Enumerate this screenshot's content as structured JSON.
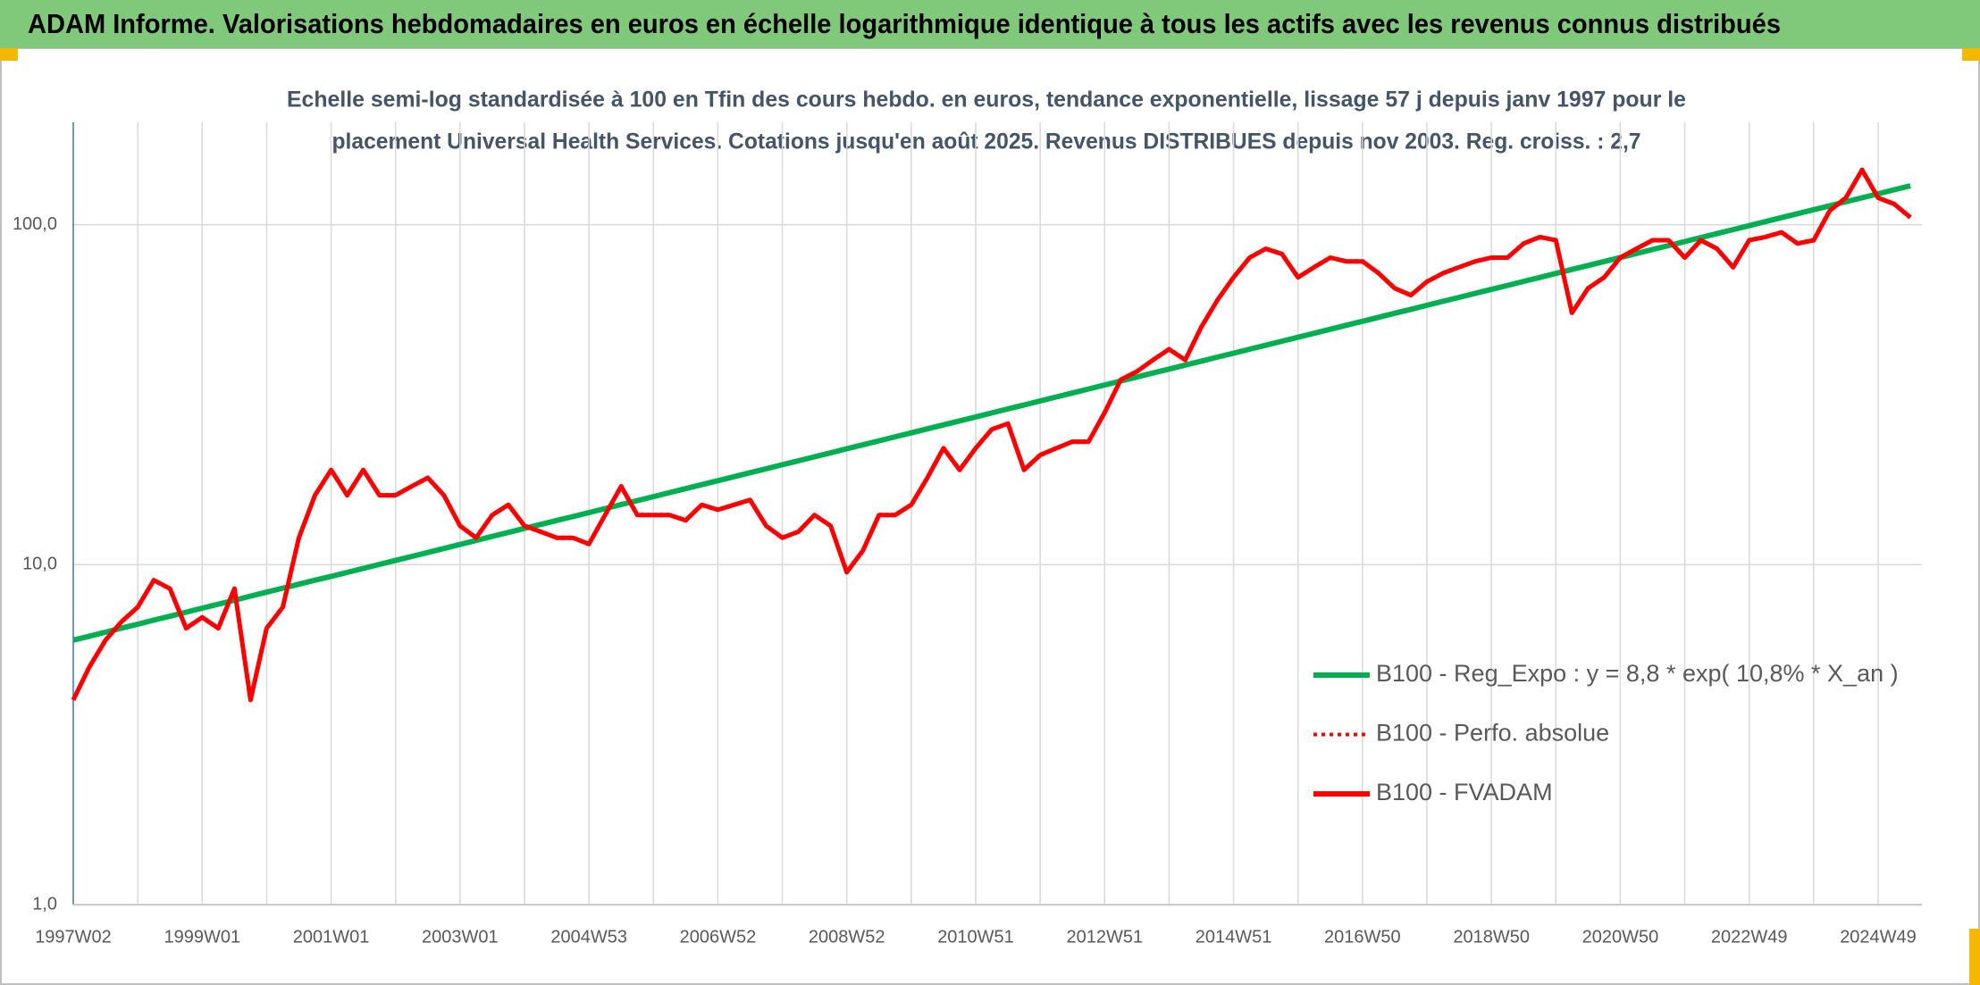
{
  "header": {
    "title": "ADAM Informe. Valorisations hebdomadaires en euros en échelle logarithmique identique à tous les actifs avec les revenus connus distribués"
  },
  "chart_data": {
    "type": "line",
    "subtitle": [
      "Echelle semi-log standardisée à 100 en Tfin des cours hebdo. en euros, tendance exponentielle, lissage 57 j depuis janv 1997 pour le",
      "placement Universal Health Services. Cotations jusqu'en août 2025. Revenus DISTRIBUES depuis nov 2003. Reg. croiss. : 2,7"
    ],
    "x": [
      "1997W02",
      null,
      null,
      null,
      null,
      null,
      null,
      null,
      "1999W01",
      null,
      null,
      null,
      null,
      null,
      null,
      null,
      "2001W01",
      null,
      null,
      null,
      null,
      null,
      null,
      null,
      "2003W01",
      null,
      null,
      null,
      null,
      null,
      null,
      null,
      "2004W53",
      null,
      null,
      null,
      null,
      null,
      null,
      null,
      "2006W52",
      null,
      null,
      null,
      null,
      null,
      null,
      null,
      "2008W52",
      null,
      null,
      null,
      null,
      null,
      null,
      null,
      "2010W51",
      null,
      null,
      null,
      null,
      null,
      null,
      null,
      "2012W51",
      null,
      null,
      null,
      null,
      null,
      null,
      null,
      "2014W51",
      null,
      null,
      null,
      null,
      null,
      null,
      null,
      "2016W50",
      null,
      null,
      null,
      null,
      null,
      null,
      null,
      "2018W50",
      null,
      null,
      null,
      null,
      null,
      null,
      null,
      "2020W50",
      null,
      null,
      null,
      null,
      null,
      null,
      null,
      "2022W49",
      null,
      null,
      null,
      null,
      null,
      null,
      null,
      "2024W49",
      null,
      null
    ],
    "ylim": [
      1,
      200
    ],
    "log_scale": true,
    "grid": true,
    "yticks": [
      {
        "value": 1,
        "label": "1,0"
      },
      {
        "value": 10,
        "label": "10,0"
      },
      {
        "value": 100,
        "label": "100,0"
      }
    ],
    "series": [
      {
        "name": "B100 - Reg_Expo : y = 8,8 * exp( 10,8% *  X_an )",
        "color": "#00b050",
        "style": "solid",
        "values": [
          6.0,
          6.16,
          6.33,
          6.51,
          6.68,
          6.87,
          7.05,
          7.25,
          7.45,
          7.65,
          7.86,
          8.08,
          8.3,
          8.53,
          8.76,
          9.0,
          9.24,
          9.49,
          9.75,
          10.02,
          10.29,
          10.57,
          10.86,
          11.16,
          11.47,
          11.78,
          12.11,
          12.44,
          12.78,
          13.13,
          13.49,
          13.85,
          14.23,
          14.62,
          15.02,
          15.43,
          15.85,
          16.29,
          16.73,
          17.19,
          17.66,
          18.14,
          18.64,
          19.15,
          19.67,
          20.21,
          20.76,
          21.33,
          21.92,
          22.52,
          23.14,
          23.77,
          24.42,
          25.09,
          25.77,
          26.48,
          27.2,
          27.94,
          28.71,
          29.49,
          30.3,
          31.13,
          31.98,
          32.86,
          33.76,
          34.68,
          35.63,
          36.61,
          37.61,
          38.64,
          39.69,
          40.78,
          41.89,
          43.04,
          44.21,
          45.42,
          46.66,
          47.94,
          49.25,
          50.6,
          51.99,
          53.41,
          54.87,
          56.37,
          57.92,
          59.5,
          61.13,
          62.8,
          64.52,
          66.28,
          68.1,
          69.96,
          71.87,
          73.84,
          75.86,
          77.93,
          80.07,
          82.26,
          84.51,
          86.82,
          89.2,
          91.64,
          94.14,
          96.72,
          99.36,
          102.1,
          104.9,
          107.7,
          110.7,
          113.7,
          116.8,
          120.0,
          123.3,
          126.7,
          130.1
        ]
      },
      {
        "name": "B100 - Perfo. absolue",
        "color": "#ff0000",
        "style": "dotted",
        "values": [
          4.0,
          5.0,
          6.0,
          6.8,
          7.5,
          9.0,
          8.5,
          6.5,
          7.0,
          6.5,
          8.5,
          4.0,
          6.5,
          7.5,
          12,
          16,
          19,
          16,
          19,
          16,
          16,
          17,
          18,
          16,
          13,
          12,
          14,
          15,
          13,
          12.5,
          12,
          12,
          11.5,
          14,
          17,
          14,
          14,
          14,
          13.5,
          15,
          14.5,
          15,
          15.5,
          13,
          12,
          12.5,
          14,
          13,
          9.5,
          11,
          14,
          14,
          15,
          18,
          22,
          19,
          22,
          25,
          26,
          19,
          21,
          22,
          23,
          23,
          28,
          35,
          37,
          40,
          43,
          40,
          50,
          60,
          70,
          80,
          85,
          82,
          70,
          75,
          80,
          78,
          78,
          72,
          65,
          62,
          68,
          72,
          75,
          78,
          80,
          80,
          88,
          92,
          90,
          55,
          65,
          70,
          80,
          85,
          90,
          90,
          80,
          90,
          85,
          75,
          90,
          92,
          95,
          88,
          90,
          110,
          120,
          145,
          120,
          115,
          105
        ]
      },
      {
        "name": "B100 - FVADAM",
        "color": "#ff0000",
        "style": "solid",
        "values": [
          4.0,
          5.0,
          6.0,
          6.8,
          7.5,
          9.0,
          8.5,
          6.5,
          7.0,
          6.5,
          8.5,
          4.0,
          6.5,
          7.5,
          12,
          16,
          19,
          16,
          19,
          16,
          16,
          17,
          18,
          16,
          13,
          12,
          14,
          15,
          13,
          12.5,
          12,
          12,
          11.5,
          14,
          17,
          14,
          14,
          14,
          13.5,
          15,
          14.5,
          15,
          15.5,
          13,
          12,
          12.5,
          14,
          13,
          9.5,
          11,
          14,
          14,
          15,
          18,
          22,
          19,
          22,
          25,
          26,
          19,
          21,
          22,
          23,
          23,
          28,
          35,
          37,
          40,
          43,
          40,
          50,
          60,
          70,
          80,
          85,
          82,
          70,
          75,
          80,
          78,
          78,
          72,
          65,
          62,
          68,
          72,
          75,
          78,
          80,
          80,
          88,
          92,
          90,
          55,
          65,
          70,
          80,
          85,
          90,
          90,
          80,
          90,
          85,
          75,
          90,
          92,
          95,
          88,
          90,
          110,
          120,
          145,
          120,
          115,
          105
        ]
      }
    ]
  }
}
